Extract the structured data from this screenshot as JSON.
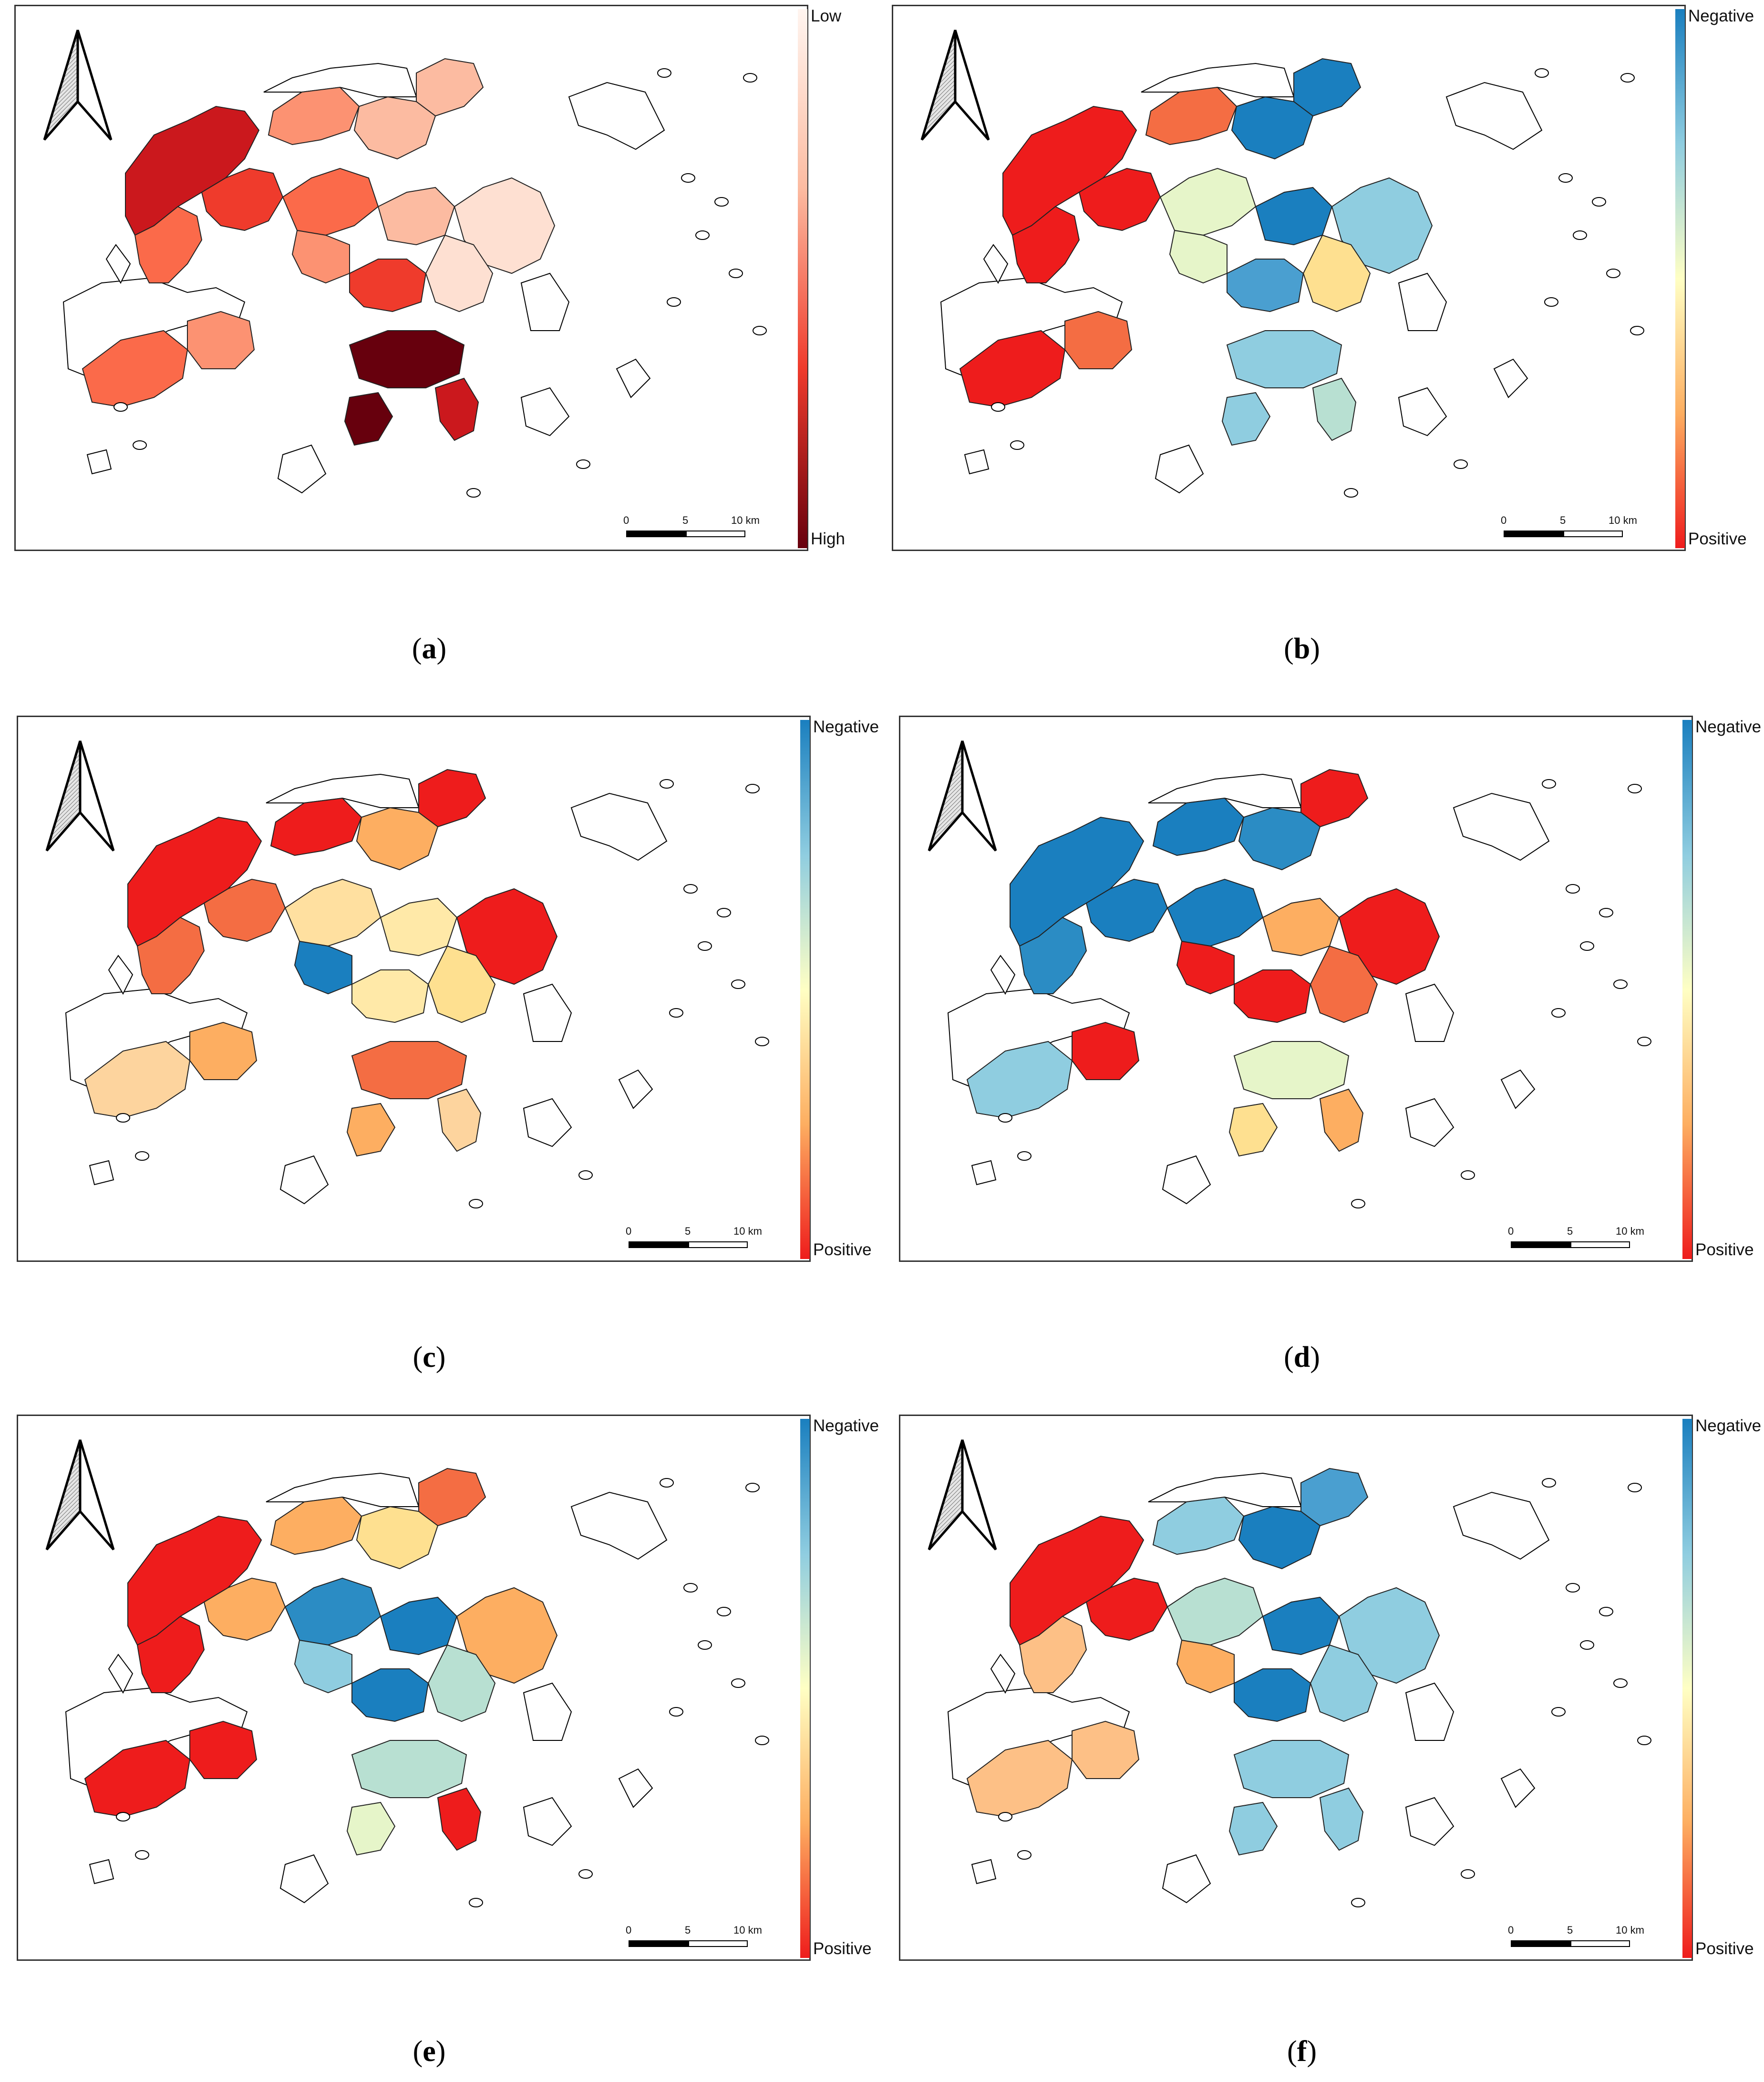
{
  "panels": [
    {
      "id": "a",
      "legend_top": "Low",
      "legend_bottom": "High",
      "scheme": "sequential-red",
      "colors": {
        "high": "#67000d",
        "low": "#fff5f0"
      }
    },
    {
      "id": "b",
      "legend_top": "Negative",
      "legend_bottom": "Positive",
      "scheme": "diverging",
      "colors": {
        "negative": "#1a7fbf",
        "positive": "#ee1c1c"
      }
    },
    {
      "id": "c",
      "legend_top": "Negative",
      "legend_bottom": "Positive",
      "scheme": "diverging",
      "colors": {
        "negative": "#1a7fbf",
        "positive": "#ee1c1c"
      }
    },
    {
      "id": "d",
      "legend_top": "Negative",
      "legend_bottom": "Positive",
      "scheme": "diverging",
      "colors": {
        "negative": "#1a7fbf",
        "positive": "#ee1c1c"
      }
    },
    {
      "id": "e",
      "legend_top": "Negative",
      "legend_bottom": "Positive",
      "scheme": "diverging",
      "colors": {
        "negative": "#1a7fbf",
        "positive": "#ee1c1c"
      }
    },
    {
      "id": "f",
      "legend_top": "Negative",
      "legend_bottom": "Positive",
      "scheme": "diverging",
      "colors": {
        "negative": "#1a7fbf",
        "positive": "#ee1c1c"
      }
    }
  ],
  "scale_bar": {
    "label_0": "0",
    "label_5": "5",
    "label_10": "10 km"
  },
  "captions": {
    "a": "a",
    "b": "b",
    "c": "c",
    "d": "d",
    "e": "e",
    "f": "f"
  },
  "icons": {
    "north_arrow": "north-arrow-icon"
  }
}
